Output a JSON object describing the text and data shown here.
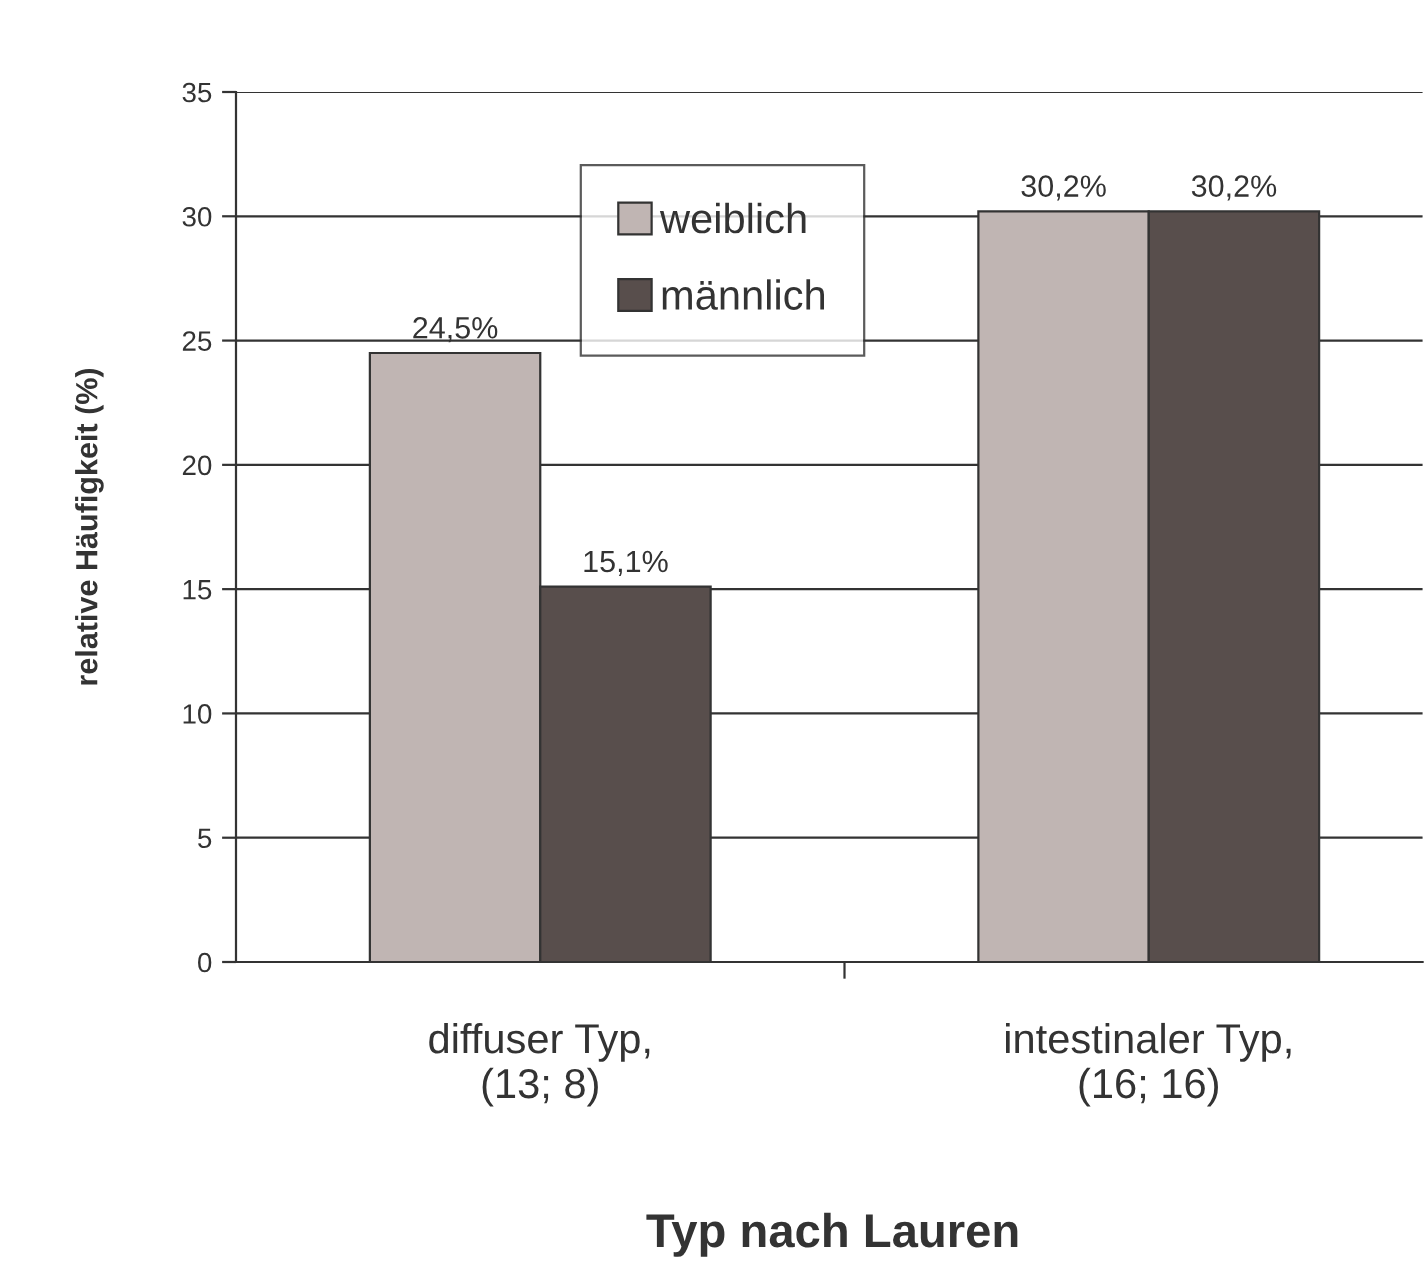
{
  "chart_data": {
    "type": "bar",
    "xlabel": "Typ nach Lauren",
    "ylabel": "relative Häufigkeit (%)",
    "categories": [
      "diffuser Typ,\n(13; 8)",
      "intestinaler Typ,\n(16; 16)"
    ],
    "series": [
      {
        "name": "weiblich",
        "color": "#c0b5b3",
        "values": [
          24.5,
          30.2
        ],
        "value_labels": [
          "24,5%",
          "30,2%"
        ]
      },
      {
        "name": "männlich",
        "color": "#584e4c",
        "values": [
          15.1,
          30.2
        ],
        "value_labels": [
          "15,1%",
          "30,2%"
        ]
      }
    ],
    "ylim": [
      0,
      35
    ],
    "yticks": [
      0,
      5,
      10,
      15,
      20,
      25,
      30,
      35
    ],
    "grid": "y",
    "legend": "top"
  }
}
